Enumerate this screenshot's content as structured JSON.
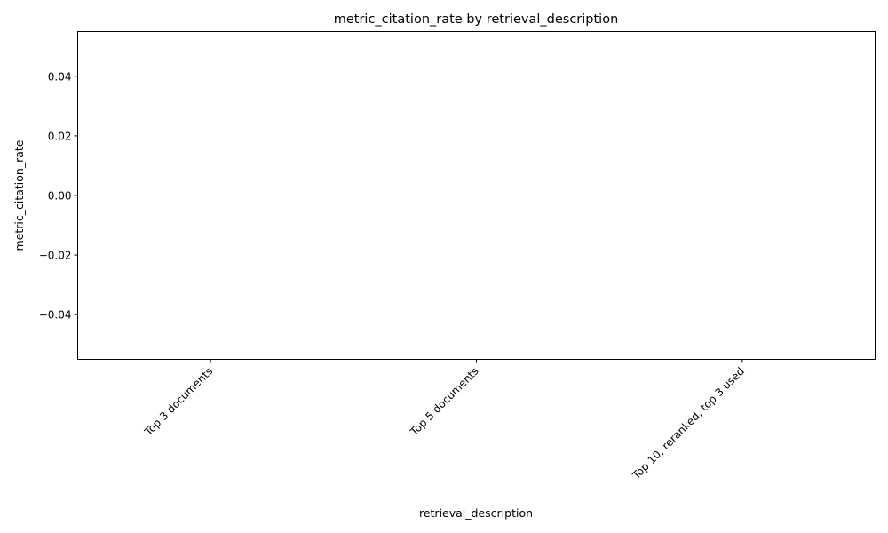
{
  "chart_data": {
    "type": "bar",
    "title": "metric_citation_rate by retrieval_description",
    "xlabel": "retrieval_description",
    "ylabel": "metric_citation_rate",
    "categories": [
      "Top 3 documents",
      "Top 5 documents",
      "Top 10, reranked, top 3 used"
    ],
    "values": [
      0,
      0,
      0
    ],
    "ylim": [
      -0.055,
      0.055
    ],
    "yticks": [
      -0.04,
      -0.02,
      0.0,
      0.02,
      0.04
    ],
    "ytick_labels": [
      "−0.04",
      "−0.02",
      "0.00",
      "0.02",
      "0.04"
    ],
    "xtick_rotation_deg": 45,
    "grid": false,
    "legend": "none"
  }
}
